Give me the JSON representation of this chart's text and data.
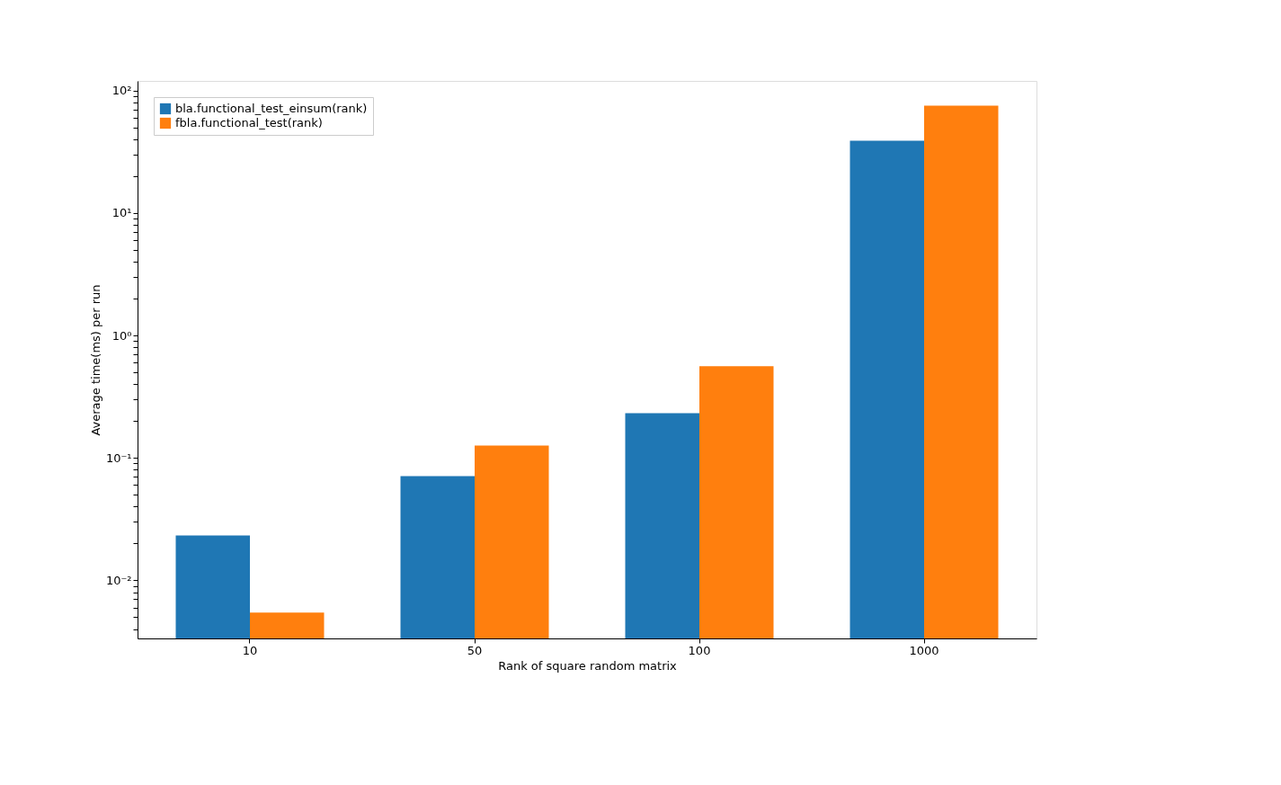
{
  "chart_data": {
    "type": "bar",
    "xlabel": "Rank of square random matrix",
    "ylabel": "Average time(ms) per run",
    "categories": [
      "10",
      "50",
      "100",
      "1000"
    ],
    "series": [
      {
        "name": "bla.functional_test_einsum(rank)",
        "color": "#1f77b4",
        "values": [
          0.0232,
          0.071,
          0.232,
          38.9
        ]
      },
      {
        "name": "fbla.functional_test(rank)",
        "color": "#ff7f0e",
        "values": [
          0.00545,
          0.126,
          0.561,
          75.5
        ]
      }
    ],
    "log": "y",
    "ylim": [
      0.00335,
      120
    ],
    "yticks": [
      {
        "value": 0.004,
        "label": null
      },
      {
        "value": 0.005,
        "label": null
      },
      {
        "value": 0.006,
        "label": null
      },
      {
        "value": 0.007,
        "label": null
      },
      {
        "value": 0.008,
        "label": null
      },
      {
        "value": 0.009,
        "label": null
      },
      {
        "value": 0.01,
        "label": "10⁻²"
      },
      {
        "value": 0.02,
        "label": null
      },
      {
        "value": 0.03,
        "label": null
      },
      {
        "value": 0.04,
        "label": null
      },
      {
        "value": 0.05,
        "label": null
      },
      {
        "value": 0.06,
        "label": null
      },
      {
        "value": 0.07,
        "label": null
      },
      {
        "value": 0.08,
        "label": null
      },
      {
        "value": 0.09,
        "label": null
      },
      {
        "value": 0.1,
        "label": "10⁻¹"
      },
      {
        "value": 0.2,
        "label": null
      },
      {
        "value": 0.3,
        "label": null
      },
      {
        "value": 0.4,
        "label": null
      },
      {
        "value": 0.5,
        "label": null
      },
      {
        "value": 0.6,
        "label": null
      },
      {
        "value": 0.7,
        "label": null
      },
      {
        "value": 0.8,
        "label": null
      },
      {
        "value": 0.9,
        "label": null
      },
      {
        "value": 1,
        "label": "10⁰"
      },
      {
        "value": 2,
        "label": null
      },
      {
        "value": 3,
        "label": null
      },
      {
        "value": 4,
        "label": null
      },
      {
        "value": 5,
        "label": null
      },
      {
        "value": 6,
        "label": null
      },
      {
        "value": 7,
        "label": null
      },
      {
        "value": 8,
        "label": null
      },
      {
        "value": 9,
        "label": null
      },
      {
        "value": 10,
        "label": "10¹"
      },
      {
        "value": 20,
        "label": null
      },
      {
        "value": 30,
        "label": null
      },
      {
        "value": 40,
        "label": null
      },
      {
        "value": 50,
        "label": null
      },
      {
        "value": 60,
        "label": null
      },
      {
        "value": 70,
        "label": null
      },
      {
        "value": 80,
        "label": null
      },
      {
        "value": 90,
        "label": null
      },
      {
        "value": 100,
        "label": "10²"
      }
    ],
    "grid": false,
    "legend": "top left"
  }
}
